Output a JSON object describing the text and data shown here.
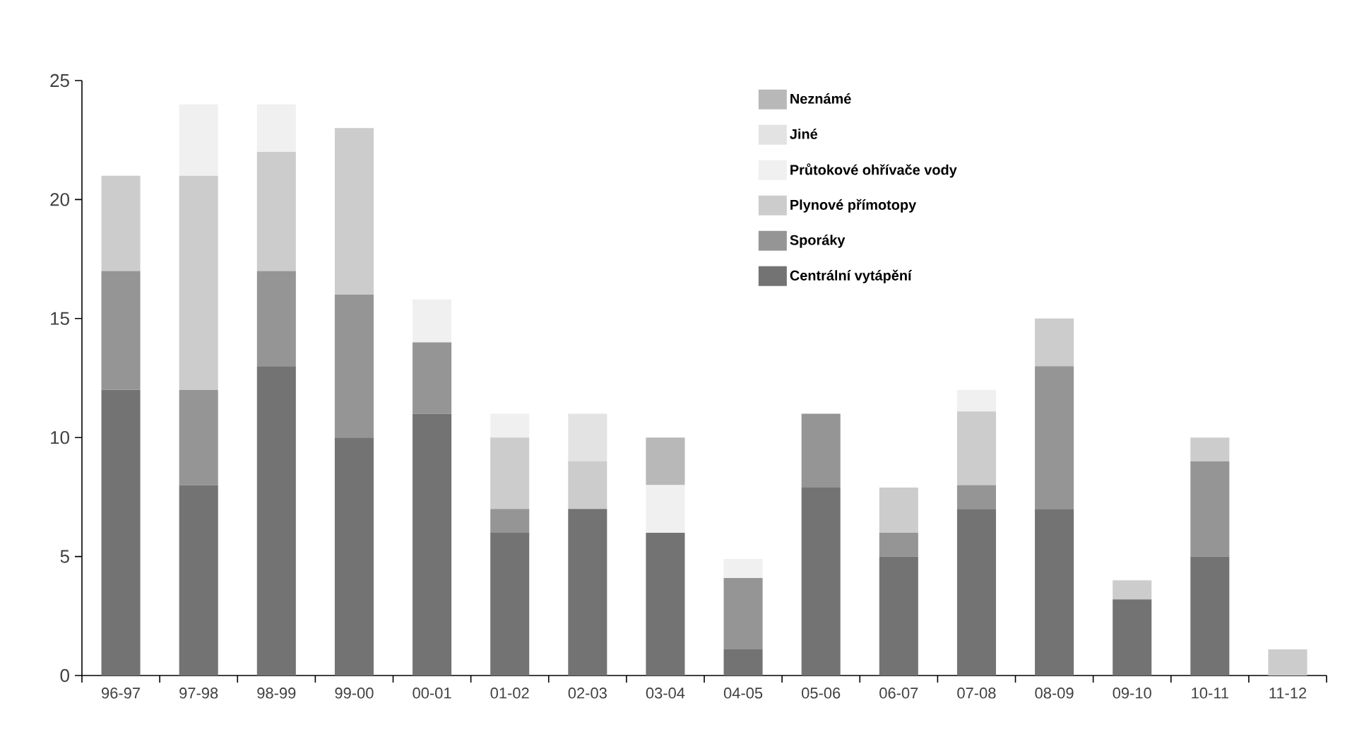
{
  "chart_data": {
    "type": "bar",
    "stacked": true,
    "categories": [
      "96-97",
      "97-98",
      "98-99",
      "99-00",
      "00-01",
      "01-02",
      "02-03",
      "03-04",
      "04-05",
      "05-06",
      "06-07",
      "07-08",
      "08-09",
      "09-10",
      "10-11",
      "11-12"
    ],
    "series": [
      {
        "name": "Centrální vytápění",
        "color": "#737373",
        "values": [
          12,
          8,
          13,
          10,
          11,
          6,
          7,
          6,
          1.1,
          7.9,
          5,
          7,
          7,
          3.2,
          5,
          0
        ]
      },
      {
        "name": "Sporáky",
        "color": "#959595",
        "values": [
          5,
          4,
          4,
          6,
          3,
          1,
          0,
          0,
          3,
          3.1,
          1,
          1,
          6,
          0,
          4,
          0
        ]
      },
      {
        "name": "Plynové přímotopy",
        "color": "#cccccc",
        "values": [
          4,
          9,
          5,
          7,
          0,
          3,
          2,
          0,
          0,
          0,
          1.9,
          3.1,
          2,
          0.8,
          1,
          1.1
        ]
      },
      {
        "name": "Průtokové ohřívače vody",
        "color": "#f0f0f0",
        "values": [
          0,
          3,
          2,
          0,
          1.8,
          1,
          0,
          2,
          0.8,
          0,
          0,
          0.9,
          0,
          0,
          0,
          0
        ]
      },
      {
        "name": "Jiné",
        "color": "#e3e3e3",
        "values": [
          0,
          0,
          0,
          0,
          0,
          0,
          2,
          0,
          0,
          0,
          0,
          0,
          0,
          0,
          0,
          0
        ]
      },
      {
        "name": "Neznámé",
        "color": "#b8b8b8",
        "values": [
          0,
          0,
          0,
          0,
          0,
          0,
          0,
          2,
          0,
          0,
          0,
          0,
          0,
          0,
          0,
          0
        ]
      }
    ],
    "ylim": [
      0,
      25
    ],
    "yticks": [
      0,
      5,
      10,
      15,
      20,
      25
    ],
    "grid": false,
    "legend": "top"
  }
}
